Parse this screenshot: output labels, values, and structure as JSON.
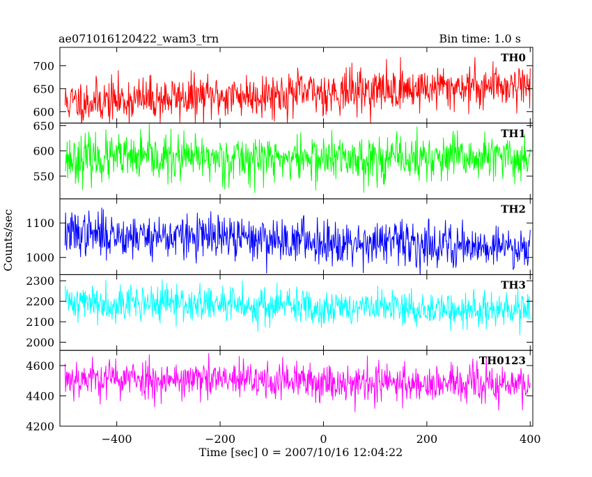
{
  "chart_data": {
    "type": "line",
    "title_left": "ae071016120422_wam3_trn",
    "title_right": "Bin time: 1.0 s",
    "xlabel": "Time [sec] 0 = 2007/10/16 12:04:22",
    "ylabel": "Counts/sec",
    "x_range": [
      -510,
      405
    ],
    "x_ticks": [
      -400,
      -200,
      0,
      200,
      400
    ],
    "data_x_range": [
      -500,
      400
    ],
    "bin_time_s": 1.0,
    "grid": false,
    "legend": "none",
    "panels": [
      {
        "name": "TH0",
        "color": "#ff0000",
        "ylim": [
          575,
          740
        ],
        "y_ticks": [
          600,
          650,
          700
        ],
        "start_level": 620,
        "end_level": 660,
        "noise": 24,
        "seed": 11
      },
      {
        "name": "TH1",
        "color": "#00ff00",
        "ylim": [
          505,
          655
        ],
        "y_ticks": [
          550,
          600,
          650
        ],
        "start_level": 585,
        "end_level": 585,
        "noise": 23,
        "seed": 23
      },
      {
        "name": "TH2",
        "color": "#0000ff",
        "ylim": [
          950,
          1170
        ],
        "y_ticks": [
          1000,
          1100
        ],
        "start_level": 1070,
        "end_level": 1030,
        "noise": 32,
        "seed": 37
      },
      {
        "name": "TH3",
        "color": "#00ffff",
        "ylim": [
          1960,
          2330
        ],
        "y_ticks": [
          2000,
          2100,
          2200,
          2300
        ],
        "start_level": 2200,
        "end_level": 2150,
        "noise": 45,
        "seed": 41
      },
      {
        "name": "TH0123",
        "color": "#ff00ff",
        "ylim": [
          4200,
          4700
        ],
        "y_ticks": [
          4200,
          4400,
          4600
        ],
        "start_level": 4520,
        "end_level": 4470,
        "noise": 65,
        "seed": 53
      }
    ]
  }
}
